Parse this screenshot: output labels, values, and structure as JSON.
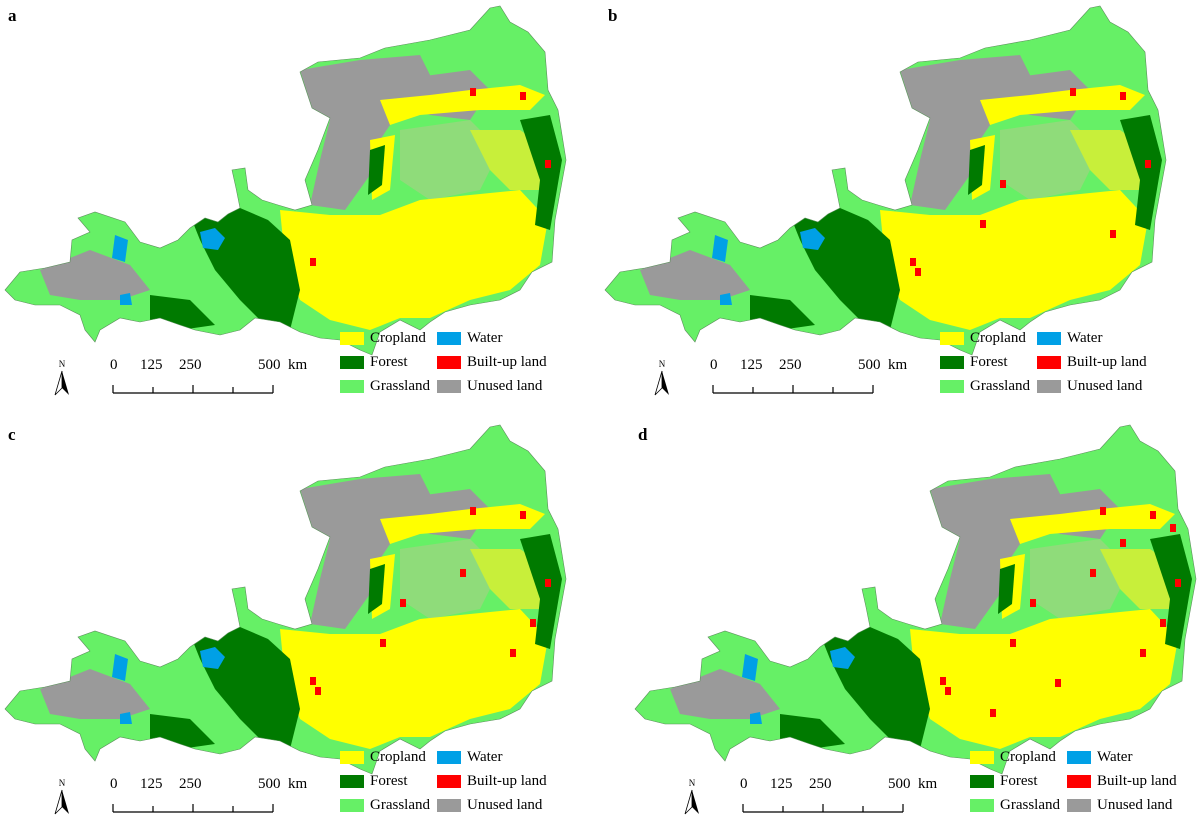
{
  "panels": [
    {
      "label": "a"
    },
    {
      "label": "b"
    },
    {
      "label": "c"
    },
    {
      "label": "d"
    }
  ],
  "legend": {
    "items": [
      {
        "label": "Cropland",
        "color": "#ffff00"
      },
      {
        "label": "Water",
        "color": "#00a0e6"
      },
      {
        "label": "Forest",
        "color": "#007a00"
      },
      {
        "label": "Built-up land",
        "color": "#ff0000"
      },
      {
        "label": "Grassland",
        "color": "#66f066"
      },
      {
        "label": "Unused land",
        "color": "#9a9a9a"
      }
    ]
  },
  "scale_bar": {
    "ticks": [
      "0",
      "125",
      "250",
      "500"
    ],
    "unit": "km"
  },
  "north_arrow": {
    "label": "N",
    "icon": "north-arrow-icon"
  }
}
